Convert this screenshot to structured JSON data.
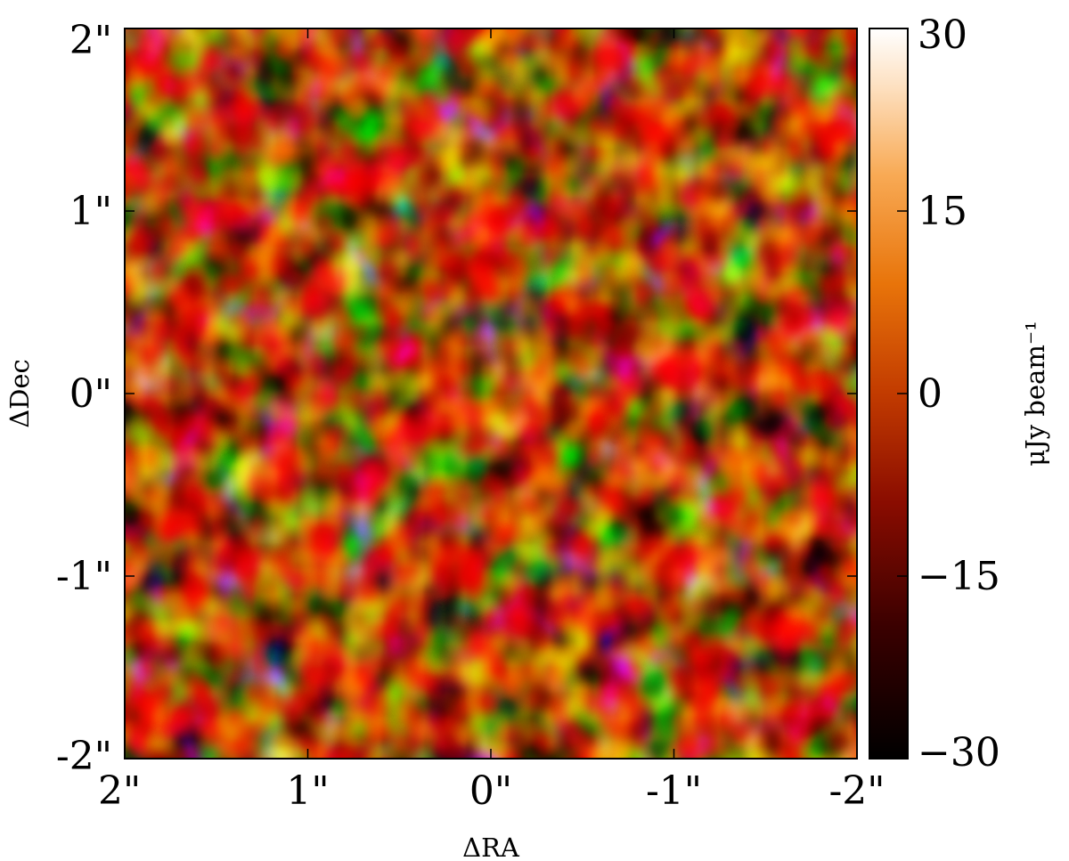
{
  "chart_data": {
    "type": "heatmap",
    "title": "",
    "xlabel": "ΔRA",
    "ylabel": "ΔDec",
    "xlim": [
      2,
      -2
    ],
    "ylim": [
      -2,
      2
    ],
    "x_ticks": [
      {
        "value": 2,
        "label": "2\""
      },
      {
        "value": 1,
        "label": "1\""
      },
      {
        "value": 0,
        "label": "0\""
      },
      {
        "value": -1,
        "label": "-1\""
      },
      {
        "value": -2,
        "label": "-2\""
      }
    ],
    "y_ticks": [
      {
        "value": 2,
        "label": "2\""
      },
      {
        "value": 1,
        "label": "1\""
      },
      {
        "value": 0,
        "label": "0\""
      },
      {
        "value": -1,
        "label": "-1\""
      },
      {
        "value": -2,
        "label": "-2\""
      }
    ],
    "colorbar": {
      "label": "μJy beam⁻¹",
      "range": [
        -30,
        30
      ],
      "ticks": [
        {
          "value": 30,
          "label": "30"
        },
        {
          "value": 15,
          "label": "15"
        },
        {
          "value": 0,
          "label": "0"
        },
        {
          "value": -15,
          "label": "−15"
        },
        {
          "value": -30,
          "label": "−30"
        }
      ],
      "colormap": "gist_heat"
    },
    "grid": false,
    "legend": "none"
  }
}
